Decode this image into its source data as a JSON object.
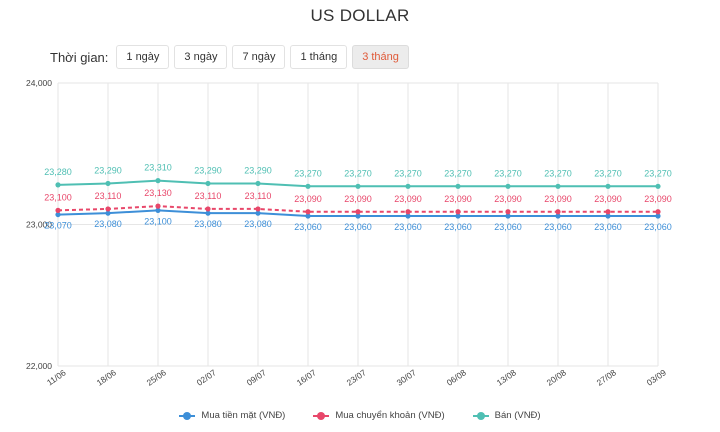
{
  "title": "US DOLLAR",
  "range_selector": {
    "label": "Thời gian:",
    "options": [
      "1 ngày",
      "3 ngày",
      "7 ngày",
      "1 tháng",
      "3 tháng"
    ],
    "selected": "3 tháng"
  },
  "colors": {
    "cash_buy": "#3d8fd8",
    "transfer_buy": "#e8476a",
    "sell": "#4fbfb3",
    "grid": "#e6e6e6",
    "active_option": "#e05b3a"
  },
  "chart_data": {
    "type": "line",
    "x": [
      "11/06",
      "18/06",
      "25/06",
      "02/07",
      "09/07",
      "16/07",
      "23/07",
      "30/07",
      "06/08",
      "13/08",
      "20/08",
      "27/08",
      "03/09"
    ],
    "ylim": [
      22000,
      24000
    ],
    "y_ticks": [
      "22,000",
      "23,000",
      "24,000"
    ],
    "grid": true,
    "legend_position": "bottom",
    "series": [
      {
        "name": "Mua tiền mặt (VNĐ)",
        "values": [
          23070,
          23080,
          23100,
          23080,
          23080,
          23060,
          23060,
          23060,
          23060,
          23060,
          23060,
          23060,
          23060
        ],
        "labels": [
          "23,070",
          "23,080",
          "23,100",
          "23,080",
          "23,080",
          "23,060",
          "23,060",
          "23,060",
          "23,060",
          "23,060",
          "23,060",
          "23,060",
          "23,060"
        ]
      },
      {
        "name": "Mua chuyển khoản (VNĐ)",
        "values": [
          23100,
          23110,
          23130,
          23110,
          23110,
          23090,
          23090,
          23090,
          23090,
          23090,
          23090,
          23090,
          23090
        ],
        "labels": [
          "23,100",
          "23,110",
          "23,130",
          "23,110",
          "23,110",
          "23,090",
          "23,090",
          "23,090",
          "23,090",
          "23,090",
          "23,090",
          "23,090",
          "23,090"
        ]
      },
      {
        "name": "Bán (VNĐ)",
        "values": [
          23280,
          23290,
          23310,
          23290,
          23290,
          23270,
          23270,
          23270,
          23270,
          23270,
          23270,
          23270,
          23270
        ],
        "labels": [
          "23,280",
          "23,290",
          "23,310",
          "23,290",
          "23,290",
          "23,270",
          "23,270",
          "23,270",
          "23,270",
          "23,270",
          "23,270",
          "23,270",
          "23,270"
        ]
      }
    ]
  }
}
